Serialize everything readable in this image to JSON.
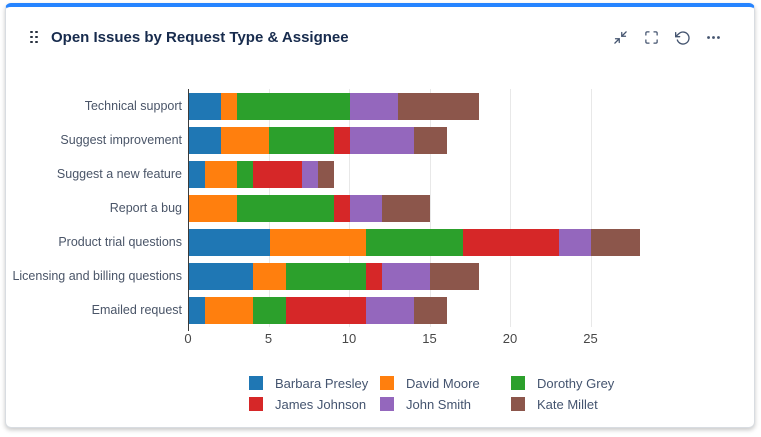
{
  "widget": {
    "title": "Open Issues by Request Type & Assignee",
    "accent_color": "#2684FF",
    "header_icons": [
      "drag-handle",
      "minimize",
      "fullscreen",
      "refresh",
      "more-options"
    ]
  },
  "chart_data": {
    "type": "bar",
    "orientation": "horizontal",
    "stacked": true,
    "title": "Open Issues by Request Type & Assignee",
    "categories": [
      "Technical support",
      "Suggest improvement",
      "Suggest a new feature",
      "Report a bug",
      "Product trial questions",
      "Licensing and billing questions",
      "Emailed request"
    ],
    "series": [
      {
        "name": "Barbara Presley",
        "color": "#1f77b4",
        "values": [
          2,
          2,
          1,
          0,
          5,
          4,
          1
        ]
      },
      {
        "name": "David Moore",
        "color": "#ff7f0e",
        "values": [
          1,
          3,
          2,
          3,
          6,
          2,
          3
        ]
      },
      {
        "name": "Dorothy Grey",
        "color": "#2ca02c",
        "values": [
          7,
          4,
          1,
          6,
          6,
          5,
          2
        ]
      },
      {
        "name": "James Johnson",
        "color": "#d62728",
        "values": [
          0,
          1,
          3,
          1,
          6,
          1,
          5
        ]
      },
      {
        "name": "John Smith",
        "color": "#9467bd",
        "values": [
          3,
          4,
          1,
          2,
          2,
          3,
          3
        ]
      },
      {
        "name": "Kate Millet",
        "color": "#8c564b",
        "values": [
          5,
          2,
          1,
          3,
          3,
          3,
          2
        ]
      }
    ],
    "totals": [
      18,
      16,
      9,
      15,
      28,
      18,
      16
    ],
    "x_ticks": [
      0,
      5,
      10,
      15,
      20,
      25
    ],
    "xlim": [
      0,
      28.6
    ],
    "grid": true,
    "legend_position": "bottom"
  }
}
